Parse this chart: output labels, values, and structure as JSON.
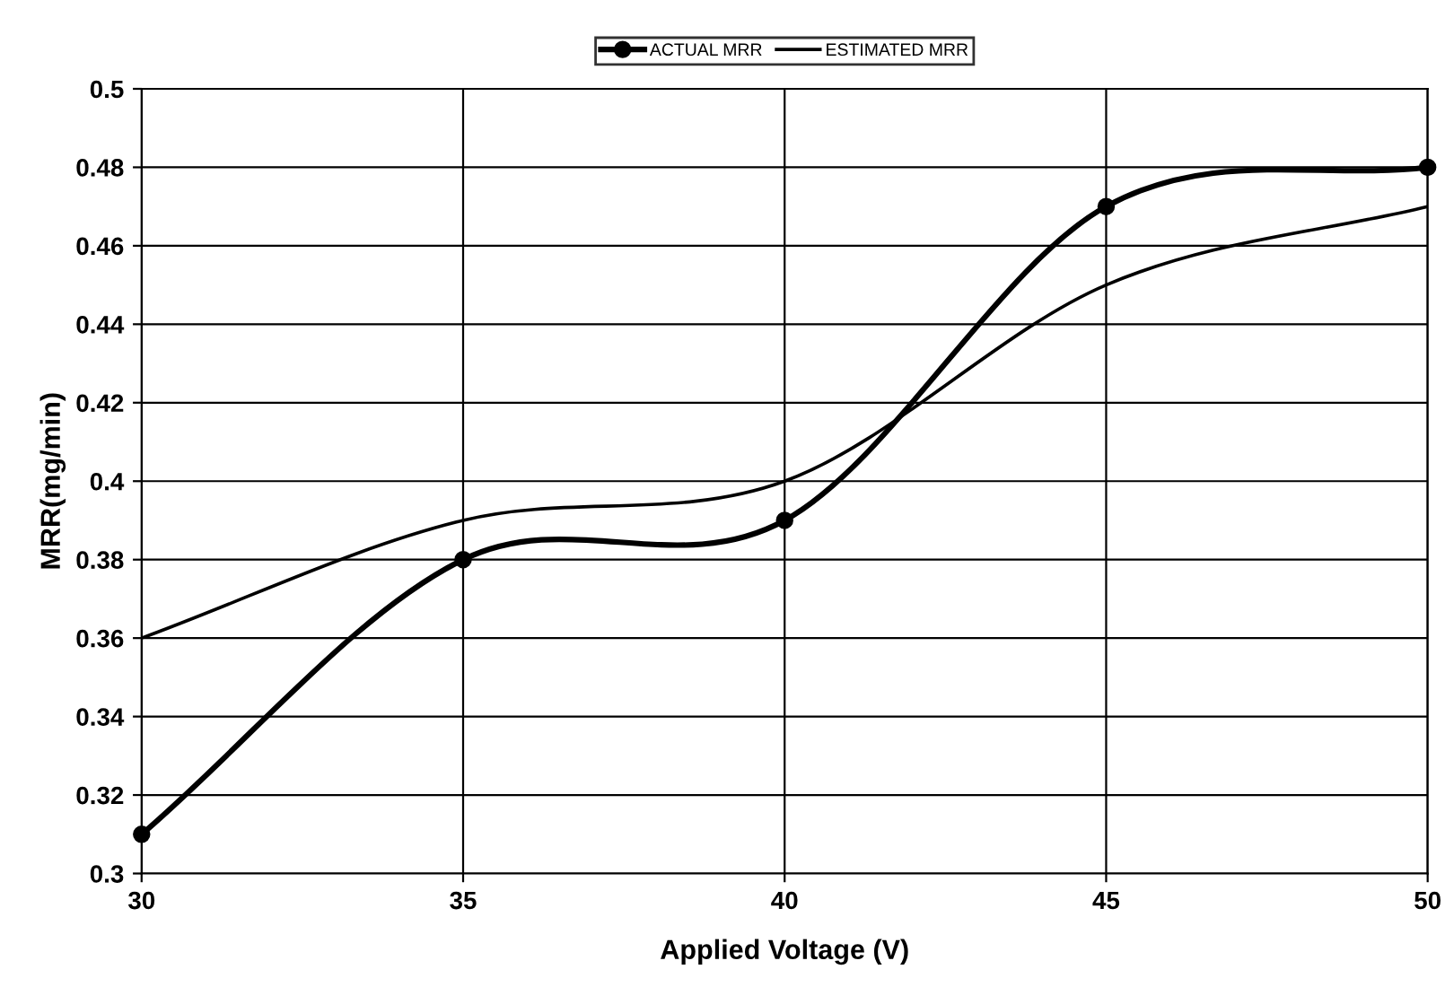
{
  "chart_data": {
    "type": "line",
    "xlabel": "Applied Voltage (V)",
    "ylabel": "MRR(mg/min)",
    "x": [
      30,
      35,
      40,
      45,
      50
    ],
    "series": [
      {
        "name": "ACTUAL MRR",
        "color": "#000000",
        "values": [
          0.31,
          0.38,
          0.39,
          0.47,
          0.48
        ],
        "marker": "circle"
      },
      {
        "name": "ESTIMATED MRR",
        "color": "#000000",
        "values": [
          0.36,
          0.39,
          0.4,
          0.45,
          0.47
        ],
        "marker": "none"
      }
    ],
    "xlim": [
      30,
      50
    ],
    "xticks": [
      30,
      35,
      40,
      45,
      50
    ],
    "ylim": [
      0.3,
      0.5
    ],
    "yticks": [
      0.3,
      0.32,
      0.34,
      0.36,
      0.38,
      0.4,
      0.42,
      0.44,
      0.46,
      0.48,
      0.5
    ],
    "grid": true,
    "legend": "top",
    "line_style": "solid"
  }
}
